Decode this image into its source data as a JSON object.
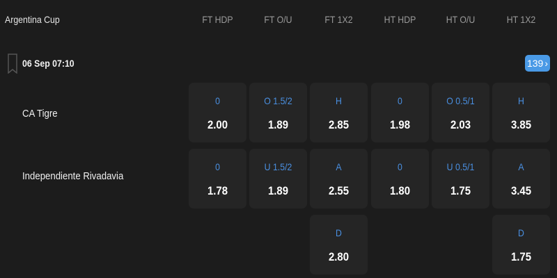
{
  "league": "Argentina Cup",
  "headers": [
    "FT HDP",
    "FT O/U",
    "FT 1X2",
    "HT HDP",
    "HT O/U",
    "HT 1X2"
  ],
  "match": {
    "date": "06 Sep 07:10",
    "more_count": "139",
    "more_icon": "chevron-right-icon"
  },
  "teams": [
    "CA Tigre",
    "Independiente Rivadavia"
  ],
  "rows": [
    [
      {
        "l": "0",
        "o": "2.00"
      },
      {
        "l": "O 1.5/2",
        "o": "1.89"
      },
      {
        "l": "H",
        "o": "2.85"
      },
      {
        "l": "0",
        "o": "1.98"
      },
      {
        "l": "O 0.5/1",
        "o": "2.03"
      },
      {
        "l": "H",
        "o": "3.85"
      }
    ],
    [
      {
        "l": "0",
        "o": "1.78"
      },
      {
        "l": "U 1.5/2",
        "o": "1.89"
      },
      {
        "l": "A",
        "o": "2.55"
      },
      {
        "l": "0",
        "o": "1.80"
      },
      {
        "l": "U 0.5/1",
        "o": "1.75"
      },
      {
        "l": "A",
        "o": "3.45"
      }
    ],
    [
      null,
      null,
      {
        "l": "D",
        "o": "2.80"
      },
      null,
      null,
      {
        "l": "D",
        "o": "1.75"
      }
    ]
  ],
  "colors": {
    "background": "#1c1c1c",
    "cell": "#252525",
    "accent": "#4a90e2",
    "badge": "#4a9ae6"
  }
}
